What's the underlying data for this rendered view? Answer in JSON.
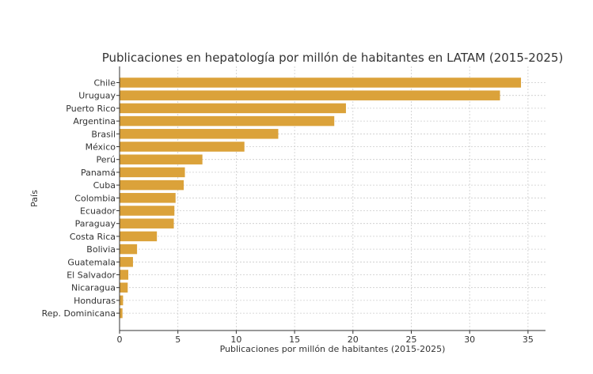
{
  "chart_data": {
    "type": "bar",
    "orientation": "horizontal",
    "title": "Publicaciones en hepatología por millón de habitantes en LATAM (2015-2025)",
    "xlabel": "Publicaciones por millón de habitantes (2015-2025)",
    "ylabel": "País",
    "xlim": [
      0,
      36.5
    ],
    "xticks": [
      0,
      5,
      10,
      15,
      20,
      25,
      30,
      35
    ],
    "grid": true,
    "bar_color": "#DBA23A",
    "categories": [
      "Chile",
      "Uruguay",
      "Puerto Rico",
      "Argentina",
      "Brasil",
      "México",
      "Perú",
      "Panamá",
      "Cuba",
      "Colombia",
      "Ecuador",
      "Paraguay",
      "Costa Rica",
      "Bolivia",
      "Guatemala",
      "El Salvador",
      "Nicaragua",
      "Honduras",
      "Rep. Dominicana"
    ],
    "values": [
      34.4,
      32.6,
      19.4,
      18.4,
      13.6,
      10.7,
      7.1,
      5.6,
      5.5,
      4.8,
      4.7,
      4.65,
      3.2,
      1.5,
      1.15,
      0.75,
      0.7,
      0.3,
      0.25
    ]
  }
}
